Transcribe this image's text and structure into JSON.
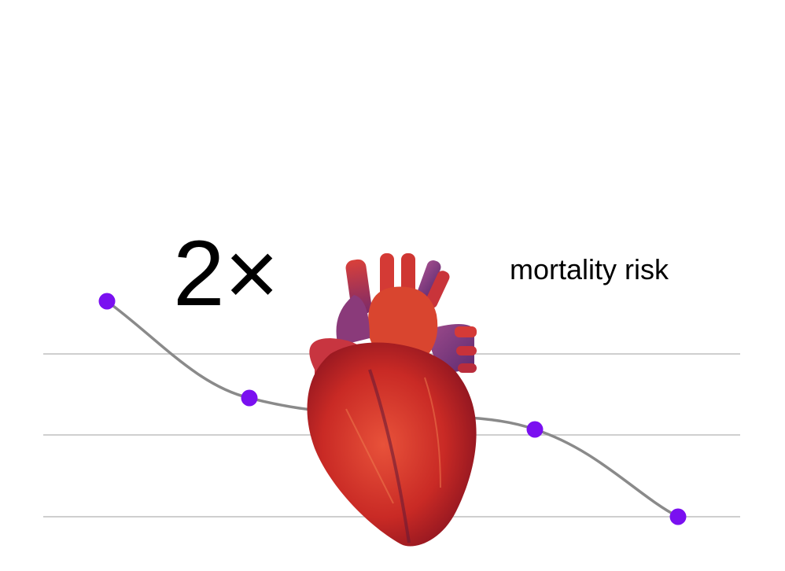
{
  "headline": {
    "multiplier": "2×",
    "label": "mortality risk"
  }
}
